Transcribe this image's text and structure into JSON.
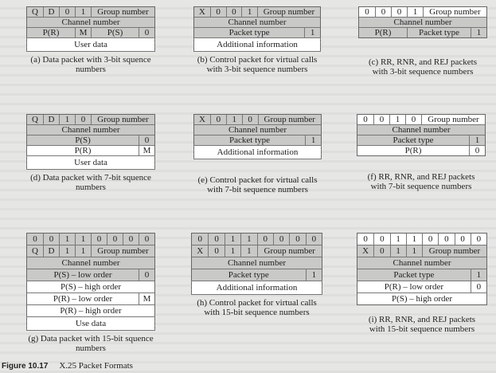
{
  "figure": {
    "number": "Figure 10.17",
    "title": "X.25 Packet Formats"
  },
  "packets": [
    {
      "id": "a",
      "caption": [
        "(a) Data packet with 3-bit squence",
        "numbers"
      ],
      "rows": [
        [
          "Q",
          "D",
          "0",
          "1",
          "Group number"
        ],
        [
          "Channel number"
        ],
        [
          "P(R)",
          "M",
          "P(S)",
          "0"
        ],
        [
          "User data"
        ]
      ]
    },
    {
      "id": "b",
      "caption": [
        "(b) Control packet for virtual calls",
        "with 3-bit sequence numbers"
      ],
      "rows": [
        [
          "X",
          "0",
          "0",
          "1",
          "Group number"
        ],
        [
          "Channel number"
        ],
        [
          "Packet type",
          "1"
        ],
        [
          "Additional information"
        ]
      ]
    },
    {
      "id": "c",
      "caption": [
        "(c) RR, RNR, and REJ packets",
        "with 3-bit sequence numbers"
      ],
      "rows": [
        [
          "0",
          "0",
          "0",
          "1",
          "Group number"
        ],
        [
          "Channel number"
        ],
        [
          "P(R)",
          "Packet type",
          "1"
        ]
      ]
    },
    {
      "id": "d",
      "caption": [
        "(d) Data packet with 7-bit squence",
        "numbers"
      ],
      "rows": [
        [
          "Q",
          "D",
          "1",
          "0",
          "Group number"
        ],
        [
          "Channel number"
        ],
        [
          "P(S)",
          "0"
        ],
        [
          "P(R)",
          "M"
        ],
        [
          "User data"
        ]
      ]
    },
    {
      "id": "e",
      "caption": [
        "(e) Control packet for virtual calls",
        "with 7-bit sequence numbers"
      ],
      "rows": [
        [
          "X",
          "0",
          "1",
          "0",
          "Group number"
        ],
        [
          "Channel number"
        ],
        [
          "Packet type",
          "1"
        ],
        [
          "Additional information"
        ]
      ]
    },
    {
      "id": "f",
      "caption": [
        "(f) RR, RNR, and REJ packets",
        "with 7-bit sequence numbers"
      ],
      "rows": [
        [
          "0",
          "0",
          "1",
          "0",
          "Group number"
        ],
        [
          "Channel number"
        ],
        [
          "Packet type",
          "1"
        ],
        [
          "P(R)",
          "0"
        ]
      ]
    },
    {
      "id": "g",
      "caption": [
        "(g) Data packet with 15-bit squence",
        "numbers"
      ],
      "rows": [
        [
          "0",
          "0",
          "1",
          "1",
          "0",
          "0",
          "0",
          "0"
        ],
        [
          "Q",
          "D",
          "1",
          "1",
          "Group number"
        ],
        [
          "Channel number"
        ],
        [
          "P(S) –  low order",
          "0"
        ],
        [
          "P(S) –  high order"
        ],
        [
          "P(R) –  low order",
          "M"
        ],
        [
          "P(R) –  high order"
        ],
        [
          "Use data"
        ]
      ]
    },
    {
      "id": "h",
      "caption": [
        "(h) Control packet for virtual calls",
        "with 15-bit sequence numbers"
      ],
      "rows": [
        [
          "0",
          "0",
          "1",
          "1",
          "0",
          "0",
          "0",
          "0"
        ],
        [
          "X",
          "0",
          "1",
          "1",
          "Group number"
        ],
        [
          "Channel number"
        ],
        [
          "Packet type",
          "1"
        ],
        [
          "Additional information"
        ]
      ]
    },
    {
      "id": "i",
      "caption": [
        "(i) RR, RNR, and REJ packets",
        "with 15-bit sequence numbers"
      ],
      "rows": [
        [
          "0",
          "0",
          "1",
          "1",
          "0",
          "0",
          "0",
          "0"
        ],
        [
          "X",
          "0",
          "1",
          "1",
          "Group number"
        ],
        [
          "Channel number"
        ],
        [
          "Packet type",
          "1"
        ],
        [
          "P(R) –  low order",
          "0"
        ],
        [
          "P(S) –  high order"
        ]
      ]
    }
  ]
}
